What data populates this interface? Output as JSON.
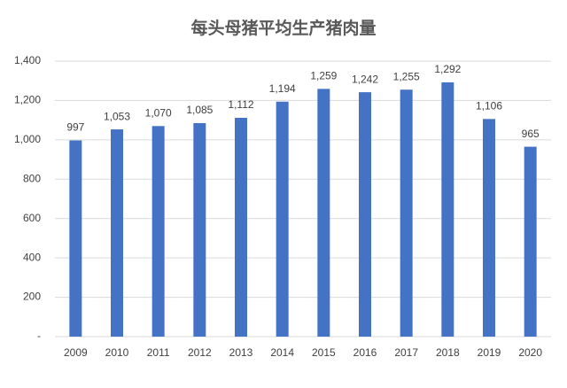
{
  "chart_data": {
    "type": "bar",
    "title": "每头母猪平均生产猪肉量",
    "categories": [
      "2009",
      "2010",
      "2011",
      "2012",
      "2013",
      "2014",
      "2015",
      "2016",
      "2017",
      "2018",
      "2019",
      "2020"
    ],
    "values": [
      997,
      1053,
      1070,
      1085,
      1112,
      1194,
      1259,
      1242,
      1255,
      1292,
      1106,
      965
    ],
    "value_labels": [
      "997",
      "1,053",
      "1,070",
      "1,085",
      "1,112",
      "1,194",
      "1,259",
      "1,242",
      "1,255",
      "1,292",
      "1,106",
      "965"
    ],
    "color": "#4472c4",
    "ylim": [
      0,
      1400
    ],
    "yticks": [
      {
        "value": 0,
        "label": "-"
      },
      200,
      400,
      600,
      800,
      {
        "value": 1000,
        "label": "1,000"
      },
      {
        "value": 1200,
        "label": "1,200"
      },
      {
        "value": 1400,
        "label": "1,400"
      }
    ],
    "grid": true
  }
}
